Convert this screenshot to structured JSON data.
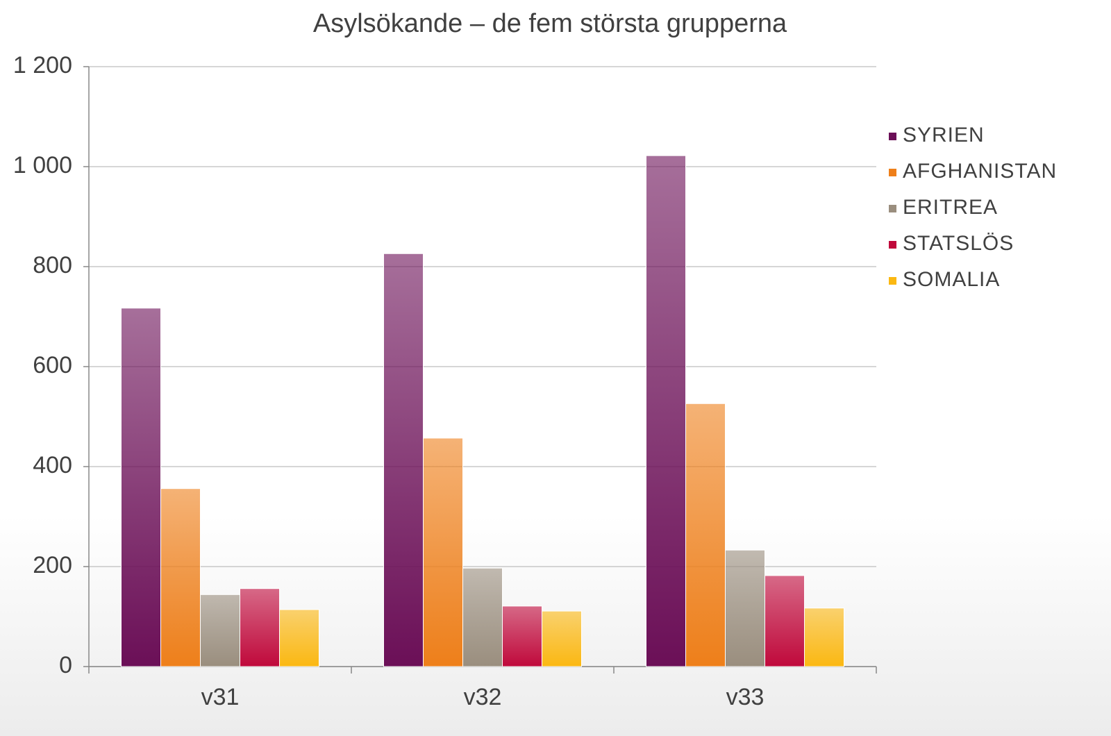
{
  "chart_data": {
    "type": "bar",
    "title": "Asylsökande – de fem största grupperna",
    "categories": [
      "v31",
      "v32",
      "v33"
    ],
    "series": [
      {
        "name": "SYRIEN",
        "color": "#6b0f57",
        "values": [
          717,
          826,
          1022
        ]
      },
      {
        "name": "AFGHANISTAN",
        "color": "#ee7f1a",
        "values": [
          356,
          457,
          526
        ]
      },
      {
        "name": "ERITREA",
        "color": "#9a8e7e",
        "values": [
          144,
          197,
          233
        ]
      },
      {
        "name": "STATSLÖS",
        "color": "#c0093b",
        "values": [
          156,
          121,
          182
        ]
      },
      {
        "name": "SOMALIA",
        "color": "#fbb812",
        "values": [
          114,
          111,
          117
        ]
      }
    ],
    "ylim": [
      0,
      1200
    ],
    "yticks": [
      0,
      200,
      400,
      600,
      800,
      {
        "value": 1000,
        "label": "1 000"
      },
      {
        "value": 1200,
        "label": "1 200"
      }
    ],
    "grid": true,
    "legend": "right"
  }
}
